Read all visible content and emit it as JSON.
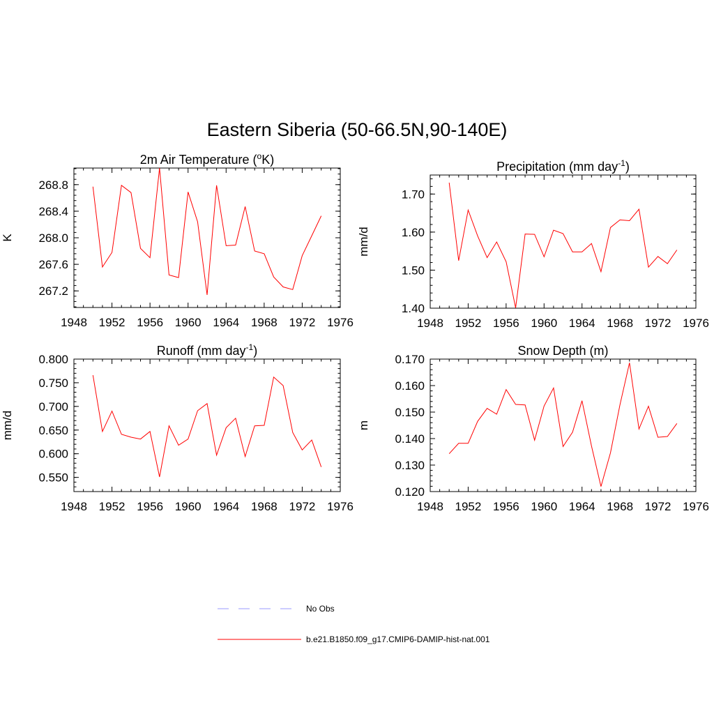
{
  "figure_title": "Eastern Siberia (50-66.5N,90-140E)",
  "legend": {
    "items": [
      {
        "label": "No Obs",
        "color": "#9999ff",
        "style": "dashed"
      },
      {
        "label": "b.e21.B1850.f09_g17.CMIP6-DAMIP-hist-nat.001",
        "color": "#ff0000",
        "style": "solid"
      }
    ]
  },
  "chart_data": [
    {
      "type": "line",
      "title": {
        "prefix": "2m Air Temperature (",
        "sup": "o",
        "suffix": "K)"
      },
      "ylabel": "K",
      "xlim": [
        1948,
        1976
      ],
      "xticks": [
        "1948",
        "1952",
        "1956",
        "1960",
        "1964",
        "1968",
        "1972",
        "1976"
      ],
      "ylim": [
        266.95,
        269.05
      ],
      "yticks": [
        "267.2",
        "267.6",
        "268.0",
        "268.4",
        "268.8"
      ],
      "color": "#ff0000",
      "x": [
        1950,
        1951,
        1952,
        1953,
        1954,
        1955,
        1956,
        1957,
        1958,
        1959,
        1960,
        1961,
        1962,
        1963,
        1964,
        1965,
        1966,
        1967,
        1968,
        1969,
        1970,
        1971,
        1972,
        1973,
        1974
      ],
      "y": [
        268.77,
        267.56,
        267.78,
        268.79,
        268.68,
        267.84,
        267.7,
        269.05,
        267.44,
        267.4,
        268.69,
        268.24,
        267.14,
        268.79,
        267.88,
        267.89,
        268.47,
        267.8,
        267.76,
        267.41,
        267.26,
        267.22,
        267.73,
        268.03,
        268.33
      ]
    },
    {
      "type": "line",
      "title": {
        "prefix": "Precipitation (mm day",
        "sup": "-1",
        "suffix": ")"
      },
      "ylabel": "mm/d",
      "xlim": [
        1948,
        1976
      ],
      "xticks": [
        "1948",
        "1952",
        "1956",
        "1960",
        "1964",
        "1968",
        "1972",
        "1976"
      ],
      "ylim": [
        1.4,
        1.75
      ],
      "yticks": [
        "1.40",
        "1.50",
        "1.60",
        "1.70"
      ],
      "color": "#ff0000",
      "x": [
        1950,
        1951,
        1952,
        1953,
        1954,
        1955,
        1956,
        1957,
        1958,
        1959,
        1960,
        1961,
        1962,
        1963,
        1964,
        1965,
        1966,
        1967,
        1968,
        1969,
        1970,
        1971,
        1972,
        1973,
        1974
      ],
      "y": [
        1.73,
        1.525,
        1.658,
        1.59,
        1.533,
        1.574,
        1.522,
        1.401,
        1.595,
        1.594,
        1.535,
        1.605,
        1.596,
        1.548,
        1.548,
        1.57,
        1.496,
        1.612,
        1.632,
        1.63,
        1.66,
        1.508,
        1.536,
        1.517,
        1.553
      ]
    },
    {
      "type": "line",
      "title": {
        "prefix": "Runoff (mm day",
        "sup": "-1",
        "suffix": ")"
      },
      "ylabel": "mm/d",
      "xlim": [
        1948,
        1976
      ],
      "xticks": [
        "1948",
        "1952",
        "1956",
        "1960",
        "1964",
        "1968",
        "1972",
        "1976"
      ],
      "ylim": [
        0.52,
        0.8
      ],
      "yticks": [
        "0.550",
        "0.600",
        "0.650",
        "0.700",
        "0.750",
        "0.800"
      ],
      "color": "#ff0000",
      "x": [
        1950,
        1951,
        1952,
        1953,
        1954,
        1955,
        1956,
        1957,
        1958,
        1959,
        1960,
        1961,
        1962,
        1963,
        1964,
        1965,
        1966,
        1967,
        1968,
        1969,
        1970,
        1971,
        1972,
        1973,
        1974
      ],
      "y": [
        0.766,
        0.647,
        0.69,
        0.641,
        0.635,
        0.631,
        0.647,
        0.551,
        0.659,
        0.618,
        0.631,
        0.691,
        0.706,
        0.597,
        0.655,
        0.675,
        0.594,
        0.659,
        0.66,
        0.762,
        0.744,
        0.645,
        0.608,
        0.629,
        0.572
      ]
    },
    {
      "type": "line",
      "title": {
        "prefix": "Snow Depth (m)",
        "sup": "",
        "suffix": ""
      },
      "ylabel": "m",
      "xlim": [
        1948,
        1976
      ],
      "xticks": [
        "1948",
        "1952",
        "1956",
        "1960",
        "1964",
        "1968",
        "1972",
        "1976"
      ],
      "ylim": [
        0.12,
        0.17
      ],
      "yticks": [
        "0.120",
        "0.130",
        "0.140",
        "0.150",
        "0.160",
        "0.170"
      ],
      "color": "#ff0000",
      "x": [
        1950,
        1951,
        1952,
        1953,
        1954,
        1955,
        1956,
        1957,
        1958,
        1959,
        1960,
        1961,
        1962,
        1963,
        1964,
        1965,
        1966,
        1967,
        1968,
        1969,
        1970,
        1971,
        1972,
        1973,
        1974
      ],
      "y": [
        0.1343,
        0.1382,
        0.1382,
        0.1465,
        0.1514,
        0.1492,
        0.1585,
        0.1529,
        0.1527,
        0.1394,
        0.1523,
        0.1591,
        0.137,
        0.1424,
        0.1543,
        0.1372,
        0.1219,
        0.1346,
        0.1527,
        0.1686,
        0.1436,
        0.1522,
        0.1405,
        0.1408,
        0.1457
      ]
    }
  ]
}
